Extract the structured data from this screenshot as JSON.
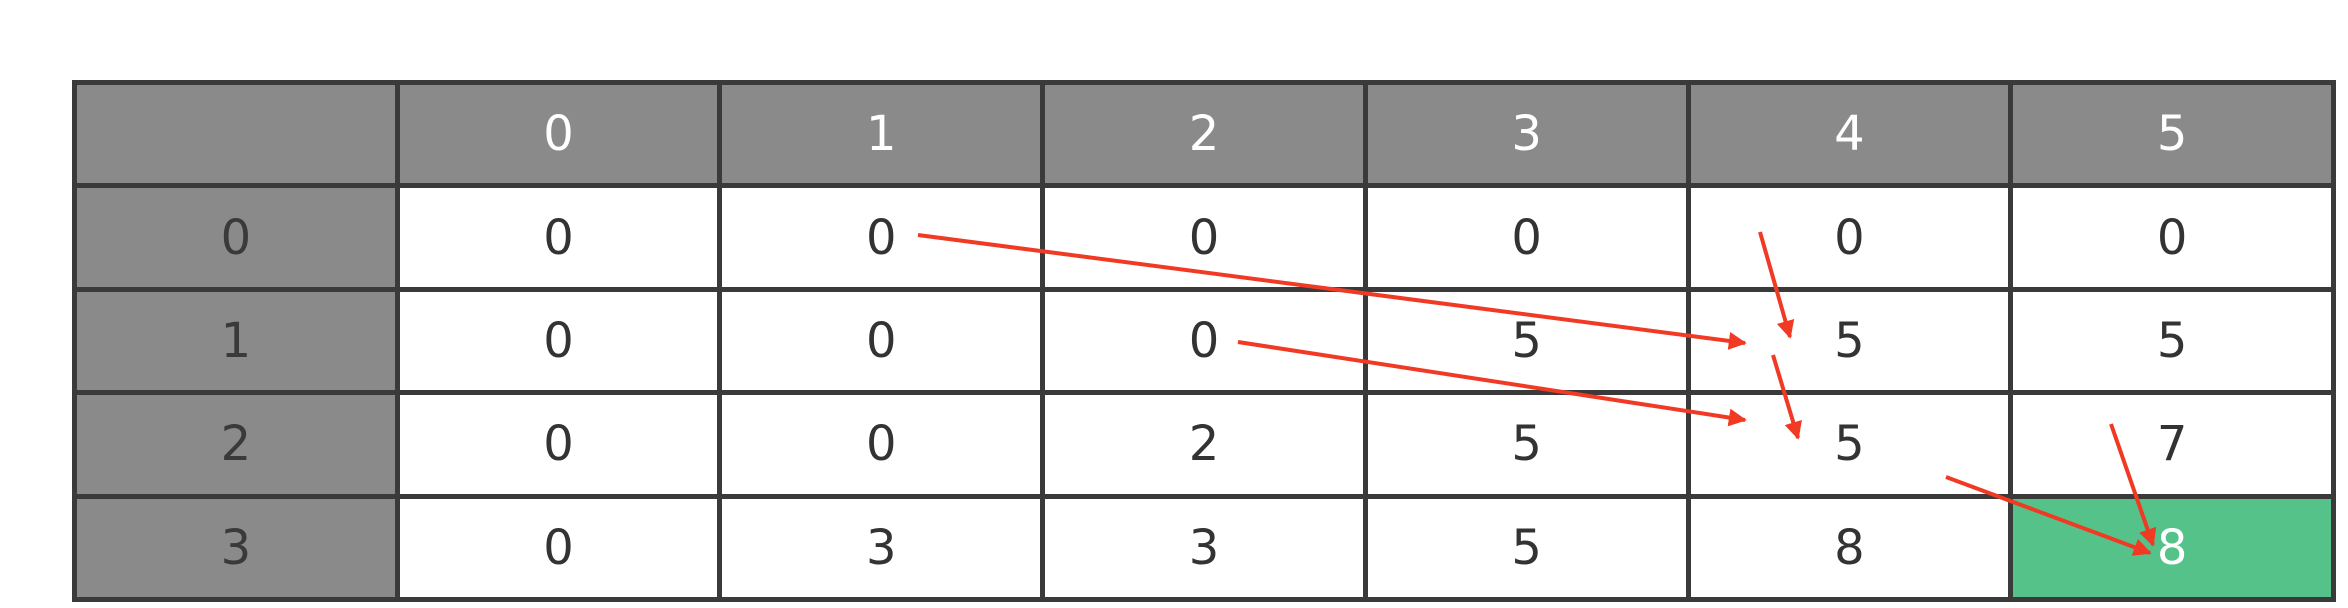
{
  "table": {
    "corner": "",
    "column_headers": [
      "0",
      "1",
      "2",
      "3",
      "4",
      "5"
    ],
    "rows": [
      {
        "header": "0",
        "cells": [
          "0",
          "0",
          "0",
          "0",
          "0",
          "0"
        ]
      },
      {
        "header": "1",
        "cells": [
          "0",
          "0",
          "0",
          "5",
          "5",
          "5"
        ]
      },
      {
        "header": "2",
        "cells": [
          "0",
          "0",
          "2",
          "5",
          "5",
          "7"
        ]
      },
      {
        "header": "3",
        "cells": [
          "0",
          "3",
          "3",
          "5",
          "8",
          "8"
        ]
      }
    ],
    "highlighted_cell": {
      "row": 3,
      "col": 5
    }
  },
  "colors": {
    "header_background": "#8a8a8a",
    "grid_border": "#3a3a3a",
    "highlight": "#55c28a",
    "arrow": "#f03a24"
  }
}
